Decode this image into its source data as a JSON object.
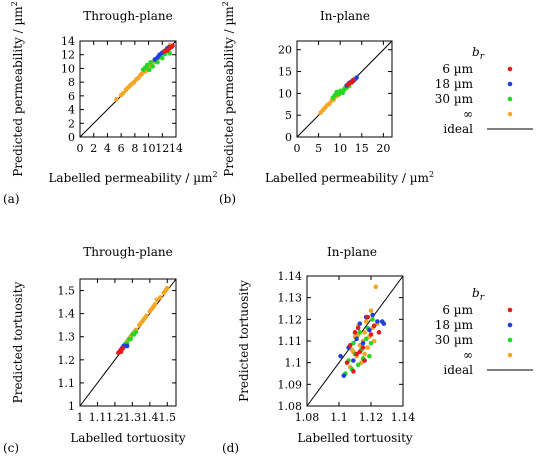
{
  "colors": {
    "br_6um": "#e41a1c",
    "br_18um": "#1f3fe0",
    "br_30um": "#22d822",
    "br_inf": "#f5a623",
    "ideal": "#000000"
  },
  "legends": [
    {
      "title_main": "b",
      "title_sub": "r",
      "entries": [
        {
          "label": "6 µm",
          "color_key": "br_6um"
        },
        {
          "label": "18 µm",
          "color_key": "br_18um"
        },
        {
          "label": "30 µm",
          "color_key": "br_30um"
        },
        {
          "label": "∞",
          "color_key": "br_inf"
        }
      ],
      "ideal_label": "ideal"
    },
    {
      "title_main": "b",
      "title_sub": "r",
      "entries": [
        {
          "label": "6 µm",
          "color_key": "br_6um"
        },
        {
          "label": "18 µm",
          "color_key": "br_18um"
        },
        {
          "label": "30 µm",
          "color_key": "br_30um"
        },
        {
          "label": "∞",
          "color_key": "br_inf"
        }
      ],
      "ideal_label": "ideal"
    }
  ],
  "chart_data": [
    {
      "id": "a",
      "type": "scatter",
      "panel_label": "(a)",
      "title": "Through-plane",
      "xlabel": "Labelled permeability  / µm",
      "ylabel": "Predicted permeability  / µm",
      "unit_superscript": "2",
      "xlim": [
        0,
        14
      ],
      "ylim": [
        0,
        14
      ],
      "xticks": [
        "0",
        "2",
        "4",
        "6",
        "8",
        "10",
        "12",
        "14"
      ],
      "yticks": [
        "0",
        "2",
        "4",
        "6",
        "8",
        "10",
        "12",
        "14"
      ],
      "ideal_line": true,
      "series": [
        {
          "color_key": "br_inf",
          "points": [
            [
              5.3,
              5.5
            ],
            [
              6.0,
              6.1
            ],
            [
              6.3,
              6.4
            ],
            [
              6.7,
              6.9
            ],
            [
              7.0,
              7.2
            ],
            [
              7.3,
              7.5
            ],
            [
              7.6,
              7.8
            ],
            [
              7.9,
              8.0
            ],
            [
              8.2,
              8.4
            ],
            [
              8.5,
              8.6
            ],
            [
              8.8,
              9.0
            ],
            [
              9.0,
              9.2
            ],
            [
              9.3,
              9.5
            ],
            [
              9.6,
              9.6
            ],
            [
              9.9,
              10.1
            ],
            [
              10.2,
              10.3
            ],
            [
              10.5,
              10.8
            ],
            [
              10.8,
              10.9
            ],
            [
              11.1,
              11.3
            ],
            [
              11.4,
              11.5
            ],
            [
              11.7,
              11.9
            ],
            [
              12.0,
              12.1
            ],
            [
              12.4,
              12.6
            ],
            [
              12.8,
              12.9
            ],
            [
              13.1,
              13.4
            ]
          ]
        },
        {
          "color_key": "br_30um",
          "points": [
            [
              9.2,
              9.8
            ],
            [
              9.5,
              10.1
            ],
            [
              9.8,
              10.5
            ],
            [
              10.1,
              9.8
            ],
            [
              10.3,
              10.9
            ],
            [
              10.6,
              10.3
            ],
            [
              10.9,
              11.2
            ],
            [
              11.3,
              10.9
            ],
            [
              11.6,
              11.7
            ],
            [
              12.0,
              11.5
            ],
            [
              12.4,
              12.1
            ],
            [
              12.8,
              12.7
            ],
            [
              13.1,
              12.2
            ]
          ]
        },
        {
          "color_key": "br_18um",
          "points": [
            [
              10.9,
              11.3
            ],
            [
              11.3,
              11.6
            ],
            [
              11.6,
              12.0
            ],
            [
              12.0,
              12.3
            ],
            [
              12.4,
              12.5
            ],
            [
              12.7,
              12.9
            ],
            [
              13.0,
              13.1
            ]
          ]
        },
        {
          "color_key": "br_6um",
          "points": [
            [
              12.3,
              12.5
            ],
            [
              12.7,
              12.6
            ],
            [
              13.0,
              12.9
            ],
            [
              13.3,
              13.1
            ],
            [
              13.5,
              13.3
            ]
          ]
        }
      ]
    },
    {
      "id": "b",
      "type": "scatter",
      "panel_label": "(b)",
      "title": "In-plane",
      "xlabel": "Labelled permeability  / µm",
      "ylabel": "Predicted permeability  / µm",
      "unit_superscript": "2",
      "xlim": [
        0,
        22
      ],
      "ylim": [
        0,
        22
      ],
      "xticks": [
        "0",
        "5",
        "10",
        "15",
        "20"
      ],
      "yticks": [
        "0",
        "5",
        "10",
        "15",
        "20"
      ],
      "xtick_values": [
        0,
        5,
        10,
        15,
        20
      ],
      "ideal_line": true,
      "series": [
        {
          "color_key": "br_inf",
          "points": [
            [
              5.5,
              5.6
            ],
            [
              6.0,
              6.2
            ],
            [
              6.5,
              6.7
            ],
            [
              7.0,
              7.3
            ],
            [
              7.5,
              7.6
            ],
            [
              8.0,
              8.3
            ],
            [
              8.5,
              8.6
            ],
            [
              9.0,
              9.3
            ],
            [
              9.5,
              9.6
            ],
            [
              10.0,
              10.2
            ],
            [
              10.5,
              10.6
            ],
            [
              11.0,
              11.2
            ],
            [
              11.5,
              11.6
            ],
            [
              12.0,
              12.1
            ],
            [
              12.5,
              12.7
            ],
            [
              13.0,
              13.1
            ]
          ]
        },
        {
          "color_key": "br_30um",
          "points": [
            [
              8.3,
              9.0
            ],
            [
              8.8,
              9.6
            ],
            [
              9.2,
              10.3
            ],
            [
              9.7,
              9.8
            ],
            [
              10.1,
              10.6
            ],
            [
              10.6,
              10.1
            ],
            [
              11.0,
              10.9
            ],
            [
              11.5,
              11.3
            ],
            [
              12.0,
              11.7
            ]
          ]
        },
        {
          "color_key": "br_18um",
          "points": [
            [
              11.5,
              11.8
            ],
            [
              12.0,
              12.3
            ],
            [
              12.5,
              12.6
            ],
            [
              13.0,
              12.8
            ],
            [
              13.4,
              13.2
            ],
            [
              13.8,
              13.6
            ]
          ]
        },
        {
          "color_key": "br_6um",
          "points": [
            [
              11.8,
              12.0
            ],
            [
              12.2,
              12.3
            ],
            [
              12.6,
              12.5
            ],
            [
              13.0,
              13.0
            ]
          ]
        }
      ]
    },
    {
      "id": "c",
      "type": "scatter",
      "panel_label": "(c)",
      "title": "Through-plane",
      "xlabel": "Labelled tortuosity",
      "ylabel": "Predicted tortuosity",
      "xlim": [
        1.0,
        1.55
      ],
      "ylim": [
        1.0,
        1.55
      ],
      "xticks": [
        "1",
        "1.1",
        "1.2",
        "1.3",
        "1.4",
        "1.5"
      ],
      "yticks": [
        "1",
        "1.1",
        "1.2",
        "1.3",
        "1.4",
        "1.5"
      ],
      "ideal_line": true,
      "series": [
        {
          "color_key": "br_inf",
          "points": [
            [
              1.27,
              1.28
            ],
            [
              1.29,
              1.3
            ],
            [
              1.3,
              1.31
            ],
            [
              1.31,
              1.32
            ],
            [
              1.32,
              1.33
            ],
            [
              1.34,
              1.35
            ],
            [
              1.35,
              1.36
            ],
            [
              1.36,
              1.37
            ],
            [
              1.37,
              1.38
            ],
            [
              1.38,
              1.39
            ],
            [
              1.4,
              1.41
            ],
            [
              1.41,
              1.42
            ],
            [
              1.42,
              1.43
            ],
            [
              1.43,
              1.44
            ],
            [
              1.44,
              1.46
            ],
            [
              1.46,
              1.47
            ],
            [
              1.48,
              1.49
            ],
            [
              1.49,
              1.5
            ],
            [
              1.5,
              1.51
            ]
          ]
        },
        {
          "color_key": "br_30um",
          "points": [
            [
              1.25,
              1.26
            ],
            [
              1.26,
              1.27
            ],
            [
              1.27,
              1.27
            ],
            [
              1.28,
              1.29
            ],
            [
              1.29,
              1.29
            ],
            [
              1.3,
              1.31
            ],
            [
              1.31,
              1.31
            ],
            [
              1.32,
              1.32
            ]
          ]
        },
        {
          "color_key": "br_18um",
          "points": [
            [
              1.24,
              1.25
            ],
            [
              1.25,
              1.26
            ],
            [
              1.26,
              1.26
            ],
            [
              1.27,
              1.26
            ]
          ]
        },
        {
          "color_key": "br_6um",
          "points": [
            [
              1.22,
              1.23
            ],
            [
              1.23,
              1.24
            ],
            [
              1.235,
              1.235
            ],
            [
              1.24,
              1.245
            ],
            [
              1.245,
              1.25
            ]
          ]
        }
      ]
    },
    {
      "id": "d",
      "type": "scatter",
      "panel_label": "(d)",
      "title": "In-plane",
      "xlabel": "Labelled tortuosity",
      "ylabel": "Predicted tortuosity",
      "xlim": [
        1.08,
        1.14
      ],
      "ylim": [
        1.08,
        1.14
      ],
      "xticks": [
        "1.08",
        "1.1",
        "1.12",
        "1.14"
      ],
      "xtick_values": [
        1.08,
        1.1,
        1.12,
        1.14
      ],
      "yticks": [
        "1.08",
        "1.09",
        "1.1",
        "1.11",
        "1.12",
        "1.13",
        "1.14"
      ],
      "ideal_line": true,
      "series": [
        {
          "color_key": "br_inf",
          "points": [
            [
              1.107,
              1.098
            ],
            [
              1.108,
              1.106
            ],
            [
              1.11,
              1.112
            ],
            [
              1.111,
              1.103
            ],
            [
              1.112,
              1.117
            ],
            [
              1.113,
              1.108
            ],
            [
              1.114,
              1.1
            ],
            [
              1.115,
              1.11
            ],
            [
              1.116,
              1.114
            ],
            [
              1.116,
              1.104
            ],
            [
              1.117,
              1.119
            ],
            [
              1.118,
              1.107
            ],
            [
              1.119,
              1.112
            ],
            [
              1.12,
              1.124
            ],
            [
              1.121,
              1.116
            ],
            [
              1.122,
              1.11
            ],
            [
              1.123,
              1.135
            ],
            [
              1.124,
              1.118
            ],
            [
              1.112,
              1.113
            ],
            [
              1.109,
              1.105
            ]
          ]
        },
        {
          "color_key": "br_30um",
          "points": [
            [
              1.104,
              1.095
            ],
            [
              1.106,
              1.101
            ],
            [
              1.108,
              1.097
            ],
            [
              1.109,
              1.109
            ],
            [
              1.11,
              1.104
            ],
            [
              1.112,
              1.099
            ],
            [
              1.113,
              1.114
            ],
            [
              1.114,
              1.106
            ],
            [
              1.115,
              1.102
            ],
            [
              1.117,
              1.111
            ],
            [
              1.118,
              1.116
            ],
            [
              1.12,
              1.109
            ],
            [
              1.121,
              1.12
            ],
            [
              1.119,
              1.103
            ]
          ]
        },
        {
          "color_key": "br_18um",
          "points": [
            [
              1.101,
              1.103
            ],
            [
              1.103,
              1.094
            ],
            [
              1.106,
              1.107
            ],
            [
              1.109,
              1.101
            ],
            [
              1.111,
              1.111
            ],
            [
              1.113,
              1.118
            ],
            [
              1.115,
              1.109
            ],
            [
              1.117,
              1.121
            ],
            [
              1.119,
              1.115
            ],
            [
              1.121,
              1.122
            ],
            [
              1.124,
              1.119
            ],
            [
              1.127,
              1.119
            ],
            [
              1.128,
              1.118
            ]
          ]
        },
        {
          "color_key": "br_6um",
          "points": [
            [
              1.105,
              1.1
            ],
            [
              1.107,
              1.108
            ],
            [
              1.109,
              1.096
            ],
            [
              1.111,
              1.104
            ],
            [
              1.112,
              1.116
            ],
            [
              1.113,
              1.105
            ],
            [
              1.115,
              1.107
            ],
            [
              1.116,
              1.101
            ],
            [
              1.118,
              1.121
            ],
            [
              1.12,
              1.113
            ],
            [
              1.122,
              1.117
            ],
            [
              1.125,
              1.114
            ],
            [
              1.11,
              1.114
            ]
          ]
        }
      ]
    }
  ]
}
